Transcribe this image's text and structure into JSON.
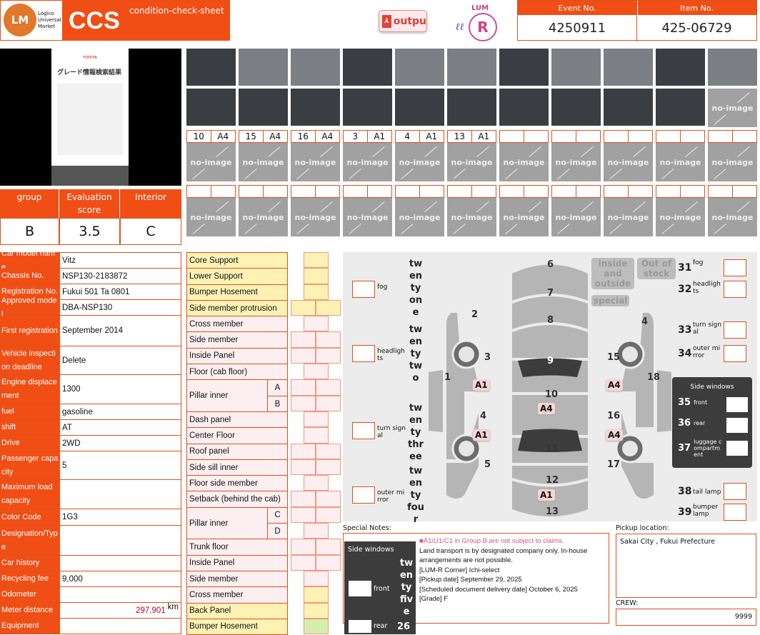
{
  "header": {
    "logo_text": "Logico Universal Market",
    "logo_mark": "LUM",
    "title": "CCS",
    "subtitle": "condition-check-sheet",
    "output_button": "outpu",
    "lumr_logo": "LUM R",
    "event_label": "Event No.",
    "event_value": "4250911",
    "item_label": "Item No.",
    "item_value": "425-06729"
  },
  "photo_labels": [
    [
      "10",
      "A4"
    ],
    [
      "15",
      "A4"
    ],
    [
      "16",
      "A4"
    ],
    [
      "3",
      "A1"
    ],
    [
      "4",
      "A1"
    ],
    [
      "13",
      "A1"
    ],
    [
      "",
      ""
    ],
    [
      "",
      ""
    ],
    [
      "",
      ""
    ],
    [
      "",
      ""
    ],
    [
      "",
      ""
    ]
  ],
  "no_image": "no-image",
  "grade": {
    "headers": [
      "group",
      "Evaluation score",
      "Interior"
    ],
    "values": [
      "B",
      "3.5",
      "C"
    ]
  },
  "spec": [
    {
      "k": "Car model name",
      "v": "Vitz"
    },
    {
      "k": "Chassis No.",
      "v": "NSP130-2183872"
    },
    {
      "k": "Registration No.",
      "v": "Fukui 501 Ta 0801"
    },
    {
      "k": "Approved model",
      "v": "DBA-NSP130"
    },
    {
      "k": "First registration",
      "v": "September 2014"
    },
    {
      "k": "Vehicle inspection deadline",
      "v": "Delete"
    },
    {
      "k": "Engine displacement",
      "v": "1300"
    },
    {
      "k": "fuel",
      "v": "gasoline"
    },
    {
      "k": "shift",
      "v": "AT"
    },
    {
      "k": "Drive",
      "v": "2WD"
    },
    {
      "k": "Passenger capacity",
      "v": "5"
    },
    {
      "k": "Maximum load capacity",
      "v": ""
    },
    {
      "k": "Color Code",
      "v": "1G3"
    },
    {
      "k": "Designation/Type",
      "v": ""
    },
    {
      "k": "Car history",
      "v": ""
    },
    {
      "k": "Recycling fee",
      "v": "9,000"
    },
    {
      "k": "Odometer",
      "v": ""
    },
    {
      "k": "Meter distance",
      "v": "297,901",
      "unit": "km"
    },
    {
      "k": "Equipment",
      "v": ""
    }
  ],
  "parts": [
    "Core Support",
    "Lower Support",
    "Bumper Hosement",
    "Side member protrusion",
    "Cross member",
    "Side member",
    "Inside Panel",
    "Floor (cab floor)",
    "Pillar inner",
    "Dash panel",
    "Center Floor",
    "Roof panel",
    "Side sill inner",
    "Floor side member",
    "Setback (behind the cab)",
    "Pillar inner",
    "Trunk floor",
    "Inside Panel",
    "Side member",
    "Cross member",
    "Back Panel",
    "Bumper Hosement"
  ],
  "pillar_ab": [
    "A",
    "B"
  ],
  "pillar_cd": [
    "C",
    "D"
  ],
  "diagram": {
    "left": [
      {
        "n": "twenty one",
        "t": "fog"
      },
      {
        "n": "twenty two",
        "t": "headlights"
      },
      {
        "n": "twenty three",
        "t": "turn signal"
      },
      {
        "n": "twenty four",
        "t": "outer mirror"
      }
    ],
    "right": [
      {
        "n": "31",
        "t": "fog"
      },
      {
        "n": "32",
        "t": "headlights"
      },
      {
        "n": "33",
        "t": "turn signal"
      },
      {
        "n": "34",
        "t": "outer mirror"
      },
      {
        "n": "38",
        "t": "tail lamp"
      },
      {
        "n": "39",
        "t": "bumper lamp"
      }
    ],
    "side_windows": {
      "title": "Side windows",
      "items": [
        {
          "n": "35",
          "t": "front"
        },
        {
          "n": "36",
          "t": "rear"
        },
        {
          "n": "37",
          "t": "luggage compartment"
        }
      ]
    },
    "buttons": {
      "inside": "inside and outside",
      "out": "Out of stock",
      "special": "special"
    },
    "panel_numbers": [
      "1",
      "2",
      "3",
      "4",
      "5",
      "6",
      "7",
      "8",
      "9",
      "10",
      "11",
      "12",
      "13",
      "4",
      "15",
      "16",
      "17",
      "18"
    ],
    "damage_tags": {
      "p3": "A1",
      "p4": "A1",
      "p10": "A4",
      "p13": "A1",
      "p15": "A4",
      "p16": "A4"
    }
  },
  "notes": {
    "label": "Special Notes:",
    "warning": "■A1/U1/C1 in Group B are not subject to claims.",
    "lines": [
      "Land transport is by designated company only. In-house arrangements are not possible.",
      "[LUM-R Corner] Ichi-select",
      "[Pickup date] September 29, 2025",
      "[Scheduled document delivery date] October 6, 2025",
      "[Grade] F"
    ],
    "overlay": {
      "title": "Side windows",
      "n25": "twenty five",
      "t25": "front",
      "n26": "26",
      "t26": "rear"
    }
  },
  "pickup": {
    "label": "Pickup location:",
    "value": "Sakai City , Fukui Prefecture"
  },
  "crew": {
    "label": "CREW:",
    "value": "9999"
  },
  "colors": {
    "accent": "#f04e15",
    "warning": "#e0508a",
    "distance": "#c0002a"
  }
}
